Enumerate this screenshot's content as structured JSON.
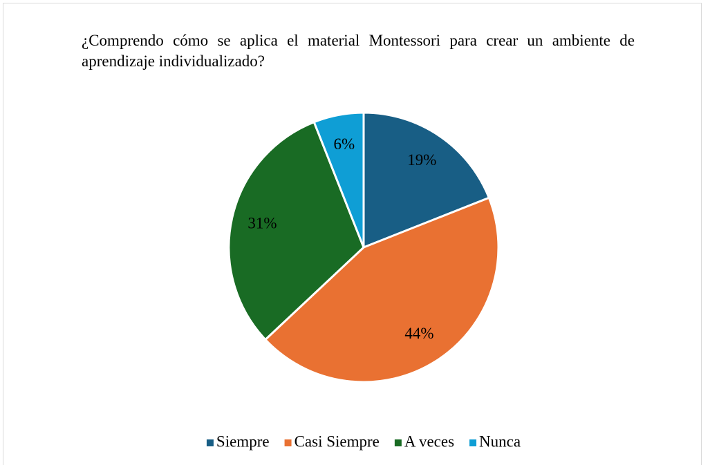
{
  "chart_data": {
    "type": "pie",
    "title": "¿Comprendo cómo se aplica el material Montessori para crear un ambiente de aprendizaje individualizado?",
    "categories": [
      "Siempre",
      "Casi Siempre",
      "A veces",
      "Nunca"
    ],
    "values": [
      19,
      44,
      31,
      6
    ],
    "value_labels": [
      "19%",
      "44%",
      "31%",
      "6%"
    ],
    "colors": [
      "#185e85",
      "#e97132",
      "#196b24",
      "#0f9ed5"
    ],
    "legend": "bottom"
  }
}
